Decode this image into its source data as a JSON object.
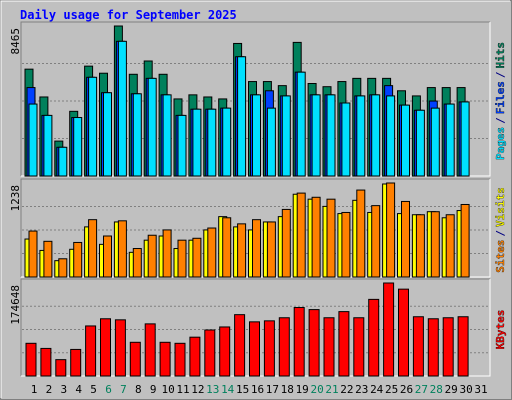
{
  "chart_data": [
    {
      "type": "bar",
      "title": "Daily usage for September 2025",
      "separator": "/",
      "series": [
        {
          "name": "Hits",
          "color": "#00805c",
          "values": [
            6030,
            4460,
            1970,
            3650,
            6200,
            5800,
            8465,
            5740,
            6490,
            5740,
            4350,
            4580,
            4460,
            4350,
            7480,
            5330,
            5330,
            5100,
            7540,
            5220,
            5040,
            5330,
            5510,
            5510,
            5510,
            4810,
            4520,
            4990,
            4990,
            4990,
            0
          ]
        },
        {
          "name": "Files",
          "color": "#0040ff",
          "values": [
            4990,
            3420,
            1620,
            3300,
            5570,
            4700,
            7600,
            4640,
            5510,
            4580,
            3420,
            3770,
            3770,
            3830,
            6730,
            4580,
            4810,
            4520,
            5860,
            4580,
            4580,
            4120,
            4520,
            4580,
            5100,
            4000,
            3710,
            4230,
            4060,
            4180,
            0
          ]
        },
        {
          "name": "Pages",
          "color": "#00e0ff",
          "values": [
            4060,
            3420,
            1620,
            3300,
            5570,
            4700,
            7600,
            4640,
            5510,
            4580,
            3420,
            3770,
            3770,
            3830,
            6730,
            4580,
            3830,
            4520,
            5860,
            4580,
            4580,
            4120,
            4520,
            4580,
            4520,
            4000,
            3710,
            3830,
            4060,
            4180,
            0
          ]
        }
      ],
      "ylim": [
        0,
        8465
      ],
      "yticks": [
        8465
      ]
    },
    {
      "type": "bar",
      "separator": "/",
      "series": [
        {
          "name": "Visits",
          "color": "#ffff00",
          "values": [
            500,
            350,
            215,
            365,
            660,
            430,
            725,
            325,
            485,
            540,
            375,
            485,
            620,
            795,
            660,
            620,
            725,
            795,
            1090,
            1025,
            930,
            835,
            1010,
            850,
            1225,
            835,
            820,
            860,
            780,
            875,
            0
          ]
        },
        {
          "name": "Sites",
          "color": "#ff8000",
          "values": [
            605,
            470,
            240,
            455,
            755,
            540,
            740,
            375,
            550,
            620,
            485,
            510,
            645,
            780,
            700,
            755,
            725,
            890,
            1105,
            1050,
            1025,
            850,
            1145,
            940,
            1238,
            995,
            820,
            860,
            820,
            955,
            0
          ]
        }
      ],
      "ylim": [
        0,
        1238
      ],
      "yticks": [
        1238
      ]
    },
    {
      "type": "bar",
      "categories": [
        "1",
        "2",
        "3",
        "4",
        "5",
        "6",
        "7",
        "8",
        "9",
        "10",
        "11",
        "12",
        "13",
        "14",
        "15",
        "16",
        "17",
        "18",
        "19",
        "20",
        "21",
        "22",
        "23",
        "24",
        "25",
        "26",
        "27",
        "28",
        "29",
        "30",
        "31"
      ],
      "category_colors": [
        "#000000",
        "#000000",
        "#000000",
        "#000000",
        "#000000",
        "#00805c",
        "#00805c",
        "#000000",
        "#000000",
        "#000000",
        "#000000",
        "#000000",
        "#00805c",
        "#00805c",
        "#000000",
        "#000000",
        "#000000",
        "#000000",
        "#000000",
        "#00805c",
        "#00805c",
        "#000000",
        "#000000",
        "#000000",
        "#000000",
        "#000000",
        "#00805c",
        "#00805c",
        "#000000",
        "#000000",
        "#000000"
      ],
      "series": [
        {
          "name": "KBytes",
          "color": "#ff0000",
          "values": [
            61400,
            51800,
            30700,
            49900,
            94000,
            107500,
            105500,
            63300,
            97900,
            63300,
            61400,
            72900,
            86400,
            92100,
            115200,
            101700,
            103600,
            109400,
            128600,
            124700,
            109400,
            120900,
            109400,
            143900,
            174648,
            163100,
            111300,
            107500,
            109400,
            111300,
            0
          ]
        }
      ],
      "ylim": [
        0,
        174648
      ],
      "yticks": [
        174648
      ]
    }
  ]
}
